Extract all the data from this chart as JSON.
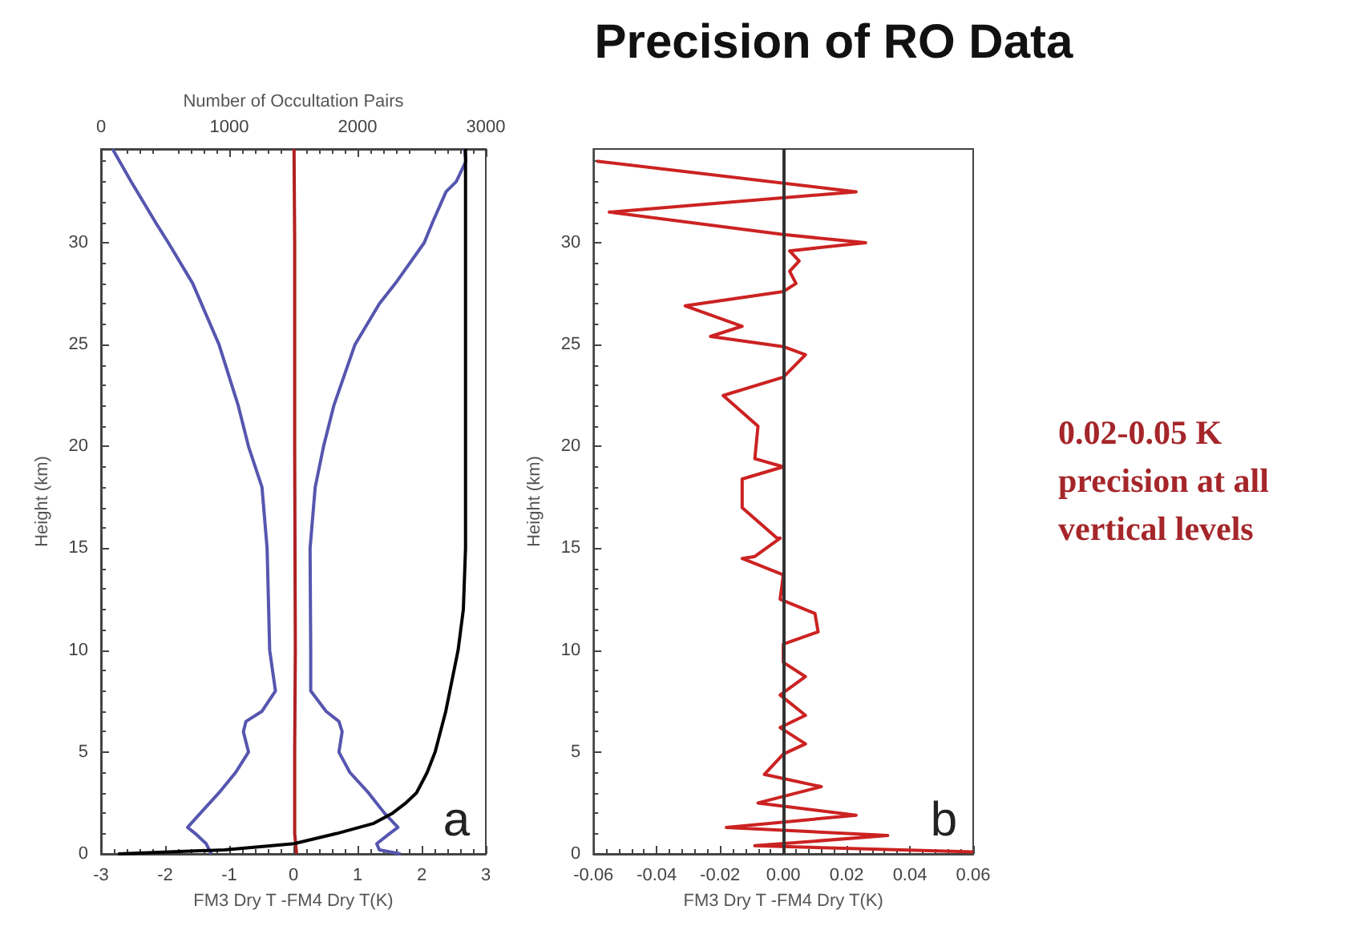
{
  "chart_data": [
    {
      "type": "line",
      "xlabel": "FM3 Dry T -FM4 Dry T(K)",
      "ylabel": "Height (km)",
      "x2label": "Number of Occultation Pairs",
      "annotations": [
        "a"
      ],
      "xlim": [
        -3,
        3
      ],
      "xticks": [
        -3,
        -2,
        -1,
        0,
        1,
        2,
        3
      ],
      "x2lim": [
        0,
        3000
      ],
      "x2ticks": [
        0,
        1000,
        2000,
        3000
      ],
      "ylim": [
        0,
        34.6
      ],
      "yticks": [
        0,
        5,
        10,
        15,
        20,
        25,
        30
      ],
      "grid": false,
      "series": [
        {
          "color": "#5656b0",
          "x": [
            -1.28,
            -1.36,
            -1.53,
            -1.65,
            -1.45,
            -1.16,
            -0.9,
            -0.7,
            -0.78,
            -0.74,
            -0.49,
            -0.28,
            -0.37,
            -0.41,
            -0.49,
            -0.7,
            -0.86,
            -1.16,
            -1.57,
            -1.95,
            -2.15,
            -2.53,
            -2.82
          ],
          "values": [
            0,
            0.5,
            1,
            1.3,
            2,
            3,
            4,
            5,
            6,
            6.5,
            7,
            8,
            10,
            15,
            18,
            20,
            22,
            25,
            28,
            30,
            31,
            33,
            34.6
          ]
        },
        {
          "color": "#5656b0",
          "x": [
            1.67,
            1.34,
            1.3,
            1.5,
            1.63,
            1.42,
            1.17,
            0.88,
            0.71,
            0.76,
            0.71,
            0.51,
            0.27,
            0.27,
            0.26,
            0.34,
            0.47,
            0.63,
            0.96,
            1.34,
            1.59,
            2.04,
            2.17,
            2.38,
            2.54,
            2.69,
            2.67
          ],
          "values": [
            0,
            0.2,
            0.5,
            1,
            1.3,
            2,
            3,
            4,
            5,
            6,
            6.5,
            7,
            8,
            10,
            15,
            18,
            20,
            22,
            25,
            27,
            28,
            30,
            31,
            32.5,
            33,
            34,
            34.6
          ]
        },
        {
          "color": "#b02020",
          "x": [
            0.05,
            0.02,
            0.02,
            0.03,
            0.02,
            0.02,
            0.01
          ],
          "values": [
            0,
            1,
            5,
            10,
            20,
            30,
            34.6
          ]
        },
        {
          "color": "#000000",
          "axis": "x2",
          "x": [
            133,
            964,
            1504,
            1837,
            2127,
            2273,
            2377,
            2460,
            2543,
            2605,
            2688,
            2784,
            2825,
            2842,
            2842
          ],
          "values": [
            0,
            0.2,
            0.5,
            1,
            1.5,
            2,
            2.5,
            3,
            4,
            5,
            7,
            10,
            12,
            15,
            34.6
          ]
        }
      ]
    },
    {
      "type": "line",
      "title": "Precision of RO Data",
      "xlabel": "FM3 Dry T -FM4 Dry T(K)",
      "ylabel": "Height (km)",
      "annotations": [
        "b"
      ],
      "xlim": [
        -0.06,
        0.06
      ],
      "xticks": [
        -0.06,
        -0.04,
        -0.02,
        {
          "value": 0,
          "label": "0.00"
        },
        0.02,
        0.04,
        0.06
      ],
      "ylim": [
        0,
        34.6
      ],
      "yticks": [
        0,
        5,
        10,
        15,
        20,
        25,
        30
      ],
      "grid": false,
      "ref_lines": [
        {
          "axis": "x",
          "value": 0,
          "color": "#333333"
        }
      ],
      "series": [
        {
          "color": "#cc2222",
          "x": [
            0.06,
            -0.009,
            0.033,
            -0.018,
            0.023,
            -0.008,
            0.012,
            -0.006,
            0,
            0.007,
            -0.001,
            0.007,
            -0.001,
            0.007,
            0,
            0,
            0.011,
            0.01,
            -0.001,
            0,
            -0.013,
            -0.009,
            -0.001,
            -0.002,
            -0.013,
            -0.013,
            0,
            -0.009,
            -0.008,
            -0.019,
            0,
            0.007,
            0,
            -0.023,
            -0.013,
            -0.031,
            0,
            0.004,
            0.002,
            0.005,
            0.002,
            0.026,
            0,
            -0.055,
            0.023,
            -0.059
          ],
          "values": [
            0.1,
            0.4,
            0.9,
            1.3,
            1.9,
            2.5,
            3.3,
            3.9,
            4.9,
            5.4,
            6.2,
            6.8,
            7.8,
            8.7,
            9.4,
            10.3,
            10.9,
            11.8,
            12.5,
            13.7,
            14.5,
            14.6,
            15.5,
            15.5,
            17,
            18.4,
            19,
            19.4,
            21,
            22.5,
            23.4,
            24.5,
            24.9,
            25.4,
            25.9,
            26.9,
            27.6,
            28,
            28.6,
            29.1,
            29.6,
            30,
            30.4,
            31.5,
            32.5,
            34
          ]
        }
      ]
    },
    {
      "type": "other",
      "annotations": [
        "0.02-0.05 K precision at all vertical levels"
      ]
    }
  ]
}
